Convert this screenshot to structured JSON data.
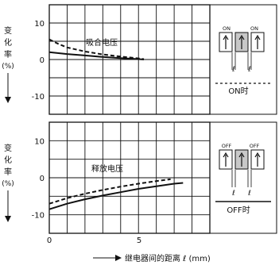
{
  "chart_data": [
    {
      "type": "line",
      "ylabel": "变化率(%)",
      "annotation": "吸合电压",
      "xlim": [
        0,
        9
      ],
      "ylim": [
        -15,
        15
      ],
      "yticks": [
        10,
        0,
        -10
      ],
      "xticks": [
        0,
        5
      ],
      "grid": true,
      "series": [
        {
          "style": "solid",
          "x": [
            0,
            1,
            2,
            3,
            4,
            5,
            5.3
          ],
          "y": [
            2.0,
            1.5,
            1.1,
            0.7,
            0.4,
            0.1,
            0.0
          ]
        },
        {
          "style": "dashed",
          "x": [
            0,
            0.5,
            1,
            2,
            3,
            4,
            5,
            5.3
          ],
          "y": [
            5.5,
            4.3,
            3.3,
            2.2,
            1.4,
            0.8,
            0.3,
            0.1
          ]
        }
      ],
      "diagram": {
        "switch_labels": [
          "ON",
          "ON"
        ],
        "spacing_labels": [
          "ℓ",
          "ℓ"
        ],
        "caption": "ON时"
      }
    },
    {
      "type": "line",
      "ylabel": "变化率(%)",
      "annotation": "释放电压",
      "xlim": [
        0,
        9
      ],
      "ylim": [
        -15,
        15
      ],
      "yticks": [
        10,
        0,
        -10
      ],
      "xticks": [
        0,
        5
      ],
      "grid": true,
      "series": [
        {
          "style": "solid",
          "x": [
            0,
            1,
            2,
            3,
            4,
            5,
            6,
            7,
            7.5
          ],
          "y": [
            -8.5,
            -7.0,
            -5.8,
            -4.8,
            -3.9,
            -3.0,
            -2.3,
            -1.6,
            -1.4
          ]
        },
        {
          "style": "dashed",
          "x": [
            0,
            1,
            2,
            3,
            4,
            5,
            6,
            6.8
          ],
          "y": [
            -7.0,
            -5.5,
            -4.3,
            -3.3,
            -2.4,
            -1.6,
            -0.9,
            -0.4
          ]
        }
      ],
      "diagram": {
        "switch_labels": [
          "OFF",
          "OFF"
        ],
        "spacing_labels": [
          "ℓ",
          "ℓ"
        ],
        "caption": "OFF时"
      }
    }
  ],
  "xaxis": {
    "label": "继电器间的距离 ℓ (mm)",
    "tick_labels": [
      "0",
      "5"
    ]
  }
}
